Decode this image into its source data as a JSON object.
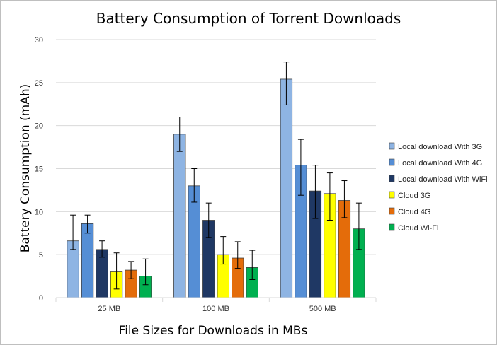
{
  "chart_data": {
    "type": "bar",
    "title": "Battery Consumption of Torrent Downloads",
    "xlabel": "File Sizes for Downloads  in MBs",
    "ylabel": "Battery Consumption   (mAh)",
    "ylim": [
      0,
      30
    ],
    "yticks": [
      0,
      5,
      10,
      15,
      20,
      25,
      30
    ],
    "grid": true,
    "legend_position": "right",
    "categories": [
      "25 MB",
      "100 MB",
      "500 MB"
    ],
    "series": [
      {
        "name": "Local download With 3G",
        "color": "#8eb4e3",
        "values": [
          6.6,
          19.0,
          25.4
        ],
        "err_low": [
          1.0,
          2.0,
          3.0
        ],
        "err_high": [
          3.0,
          2.0,
          2.0
        ]
      },
      {
        "name": "Local download With 4G",
        "color": "#558ed5",
        "values": [
          8.6,
          13.0,
          15.4
        ],
        "err_low": [
          1.1,
          1.9,
          3.5
        ],
        "err_high": [
          1.0,
          2.0,
          3.0
        ]
      },
      {
        "name": "Local download With WiFi",
        "color": "#1f3864",
        "values": [
          5.6,
          9.0,
          12.4
        ],
        "err_low": [
          0.9,
          2.0,
          3.2
        ],
        "err_high": [
          1.0,
          2.0,
          3.0
        ]
      },
      {
        "name": "Cloud 3G",
        "color": "#ffff00",
        "values": [
          3.0,
          5.0,
          12.1
        ],
        "err_low": [
          2.0,
          1.1,
          3.1
        ],
        "err_high": [
          2.2,
          2.1,
          2.4
        ]
      },
      {
        "name": "Cloud 4G",
        "color": "#e46c0a",
        "values": [
          3.2,
          4.6,
          11.3
        ],
        "err_low": [
          1.0,
          1.2,
          2.0
        ],
        "err_high": [
          1.0,
          1.9,
          2.3
        ]
      },
      {
        "name": "Cloud Wi-Fi",
        "color": "#00b050",
        "values": [
          2.5,
          3.5,
          8.0
        ],
        "err_low": [
          1.0,
          1.4,
          2.4
        ],
        "err_high": [
          2.0,
          2.0,
          3.0
        ]
      }
    ]
  }
}
